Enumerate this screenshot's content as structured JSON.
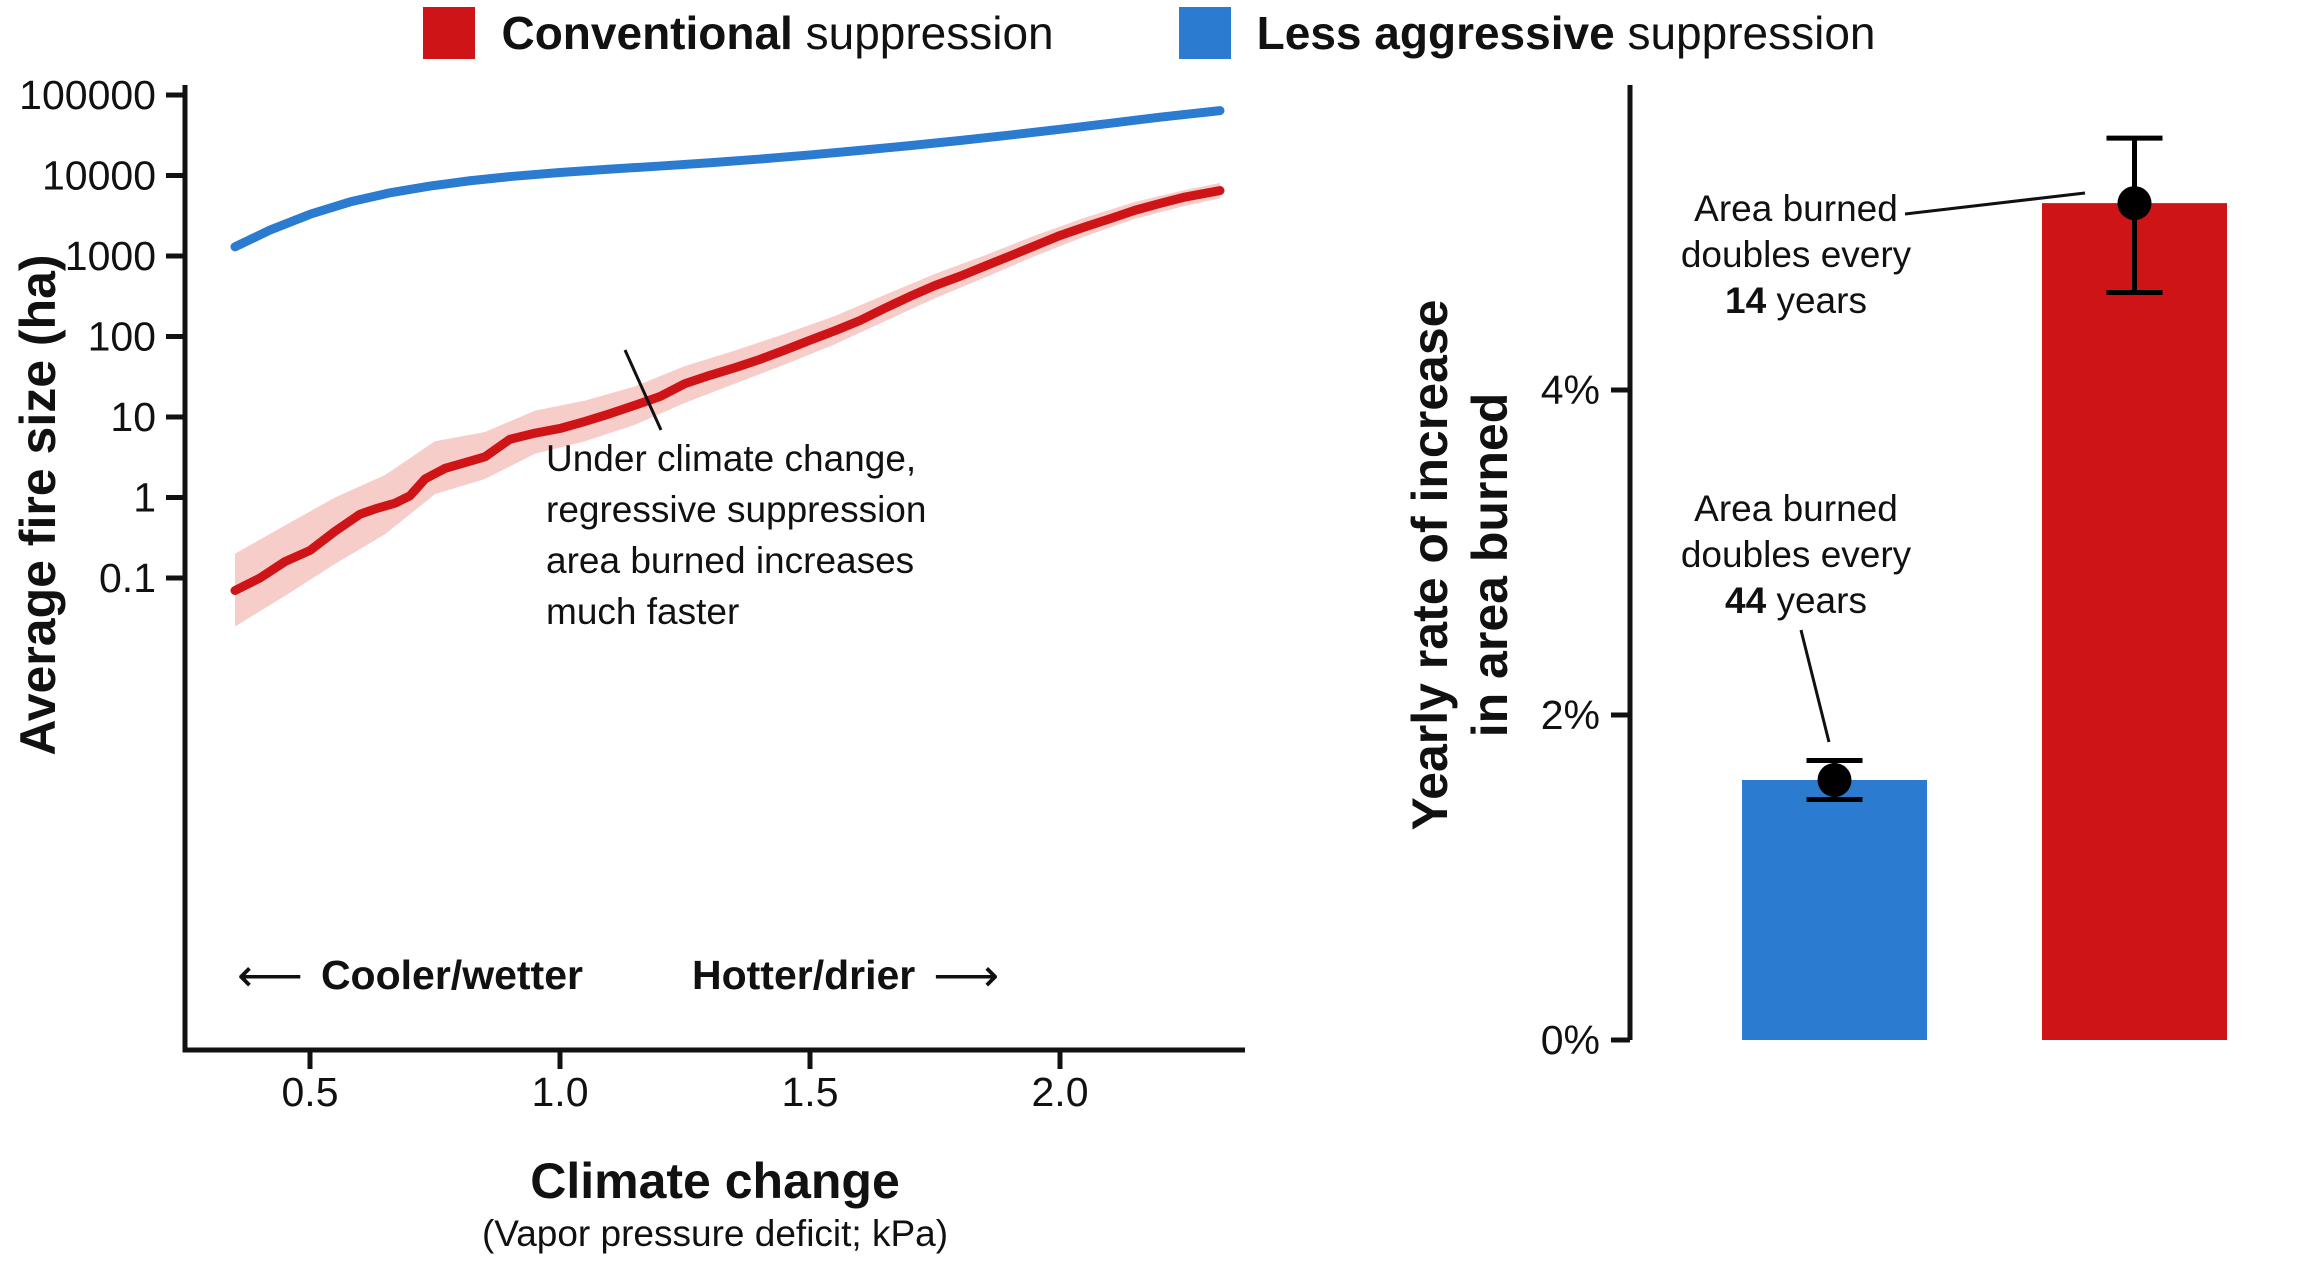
{
  "legend": {
    "items": [
      {
        "id": "conventional",
        "color": "#cf1418",
        "bold": "Conventional",
        "rest": " suppression"
      },
      {
        "id": "less-aggressive",
        "color": "#2b7bd0",
        "bold": "Less aggressive",
        "rest": " suppression"
      }
    ]
  },
  "chart_data": [
    {
      "type": "line",
      "ylabel": "Average fire size (ha)",
      "xlabel": "Climate change",
      "xlabel_sub": "(Vapor pressure deficit; kPa)",
      "y_scale": "log",
      "xlim": [
        0.25,
        2.37
      ],
      "ylim": [
        0.03,
        100000
      ],
      "x_tick_values": [
        0.5,
        1.0,
        1.5,
        2.0
      ],
      "x_tick_labels": [
        "0.5",
        "1.0",
        "1.5",
        "2.0"
      ],
      "y_tick_values": [
        100000,
        10000,
        1000,
        100,
        10,
        1,
        0.1
      ],
      "y_tick_labels": [
        "100000",
        "10000",
        "1000",
        "100",
        "10",
        "1",
        "0.1"
      ],
      "direction_left": {
        "arrow": "⟵",
        "label": "Cooler/wetter"
      },
      "direction_right": {
        "label": "Hotter/drier",
        "arrow": "⟶"
      },
      "annotation": "Under climate change,\nregressive suppression\narea burned increases\nmuch faster",
      "series": [
        {
          "id": "less-aggressive",
          "name": "Less aggressive suppression",
          "color": "#2b7bd0",
          "x": [
            0.35,
            0.42,
            0.5,
            0.58,
            0.66,
            0.74,
            0.82,
            0.9,
            1.0,
            1.1,
            1.2,
            1.3,
            1.4,
            1.5,
            1.6,
            1.7,
            1.8,
            1.9,
            2.0,
            2.1,
            2.2,
            2.32
          ],
          "y": [
            1300,
            2100,
            3300,
            4700,
            6100,
            7400,
            8600,
            9700,
            10900,
            12000,
            13100,
            14400,
            16000,
            18000,
            20500,
            23500,
            27200,
            31800,
            37500,
            44500,
            53000,
            64000
          ]
        },
        {
          "id": "conventional",
          "name": "Conventional suppression",
          "color": "#cf1418",
          "x": [
            0.35,
            0.4,
            0.45,
            0.5,
            0.55,
            0.6,
            0.63,
            0.67,
            0.7,
            0.73,
            0.77,
            0.8,
            0.85,
            0.9,
            0.95,
            1.0,
            1.05,
            1.1,
            1.15,
            1.2,
            1.25,
            1.3,
            1.35,
            1.4,
            1.45,
            1.5,
            1.55,
            1.6,
            1.65,
            1.7,
            1.75,
            1.8,
            1.85,
            1.9,
            1.95,
            2.0,
            2.05,
            2.1,
            2.15,
            2.2,
            2.25,
            2.32
          ],
          "y": [
            0.07,
            0.1,
            0.16,
            0.22,
            0.38,
            0.62,
            0.72,
            0.85,
            1.05,
            1.7,
            2.3,
            2.6,
            3.2,
            5.3,
            6.3,
            7.2,
            8.8,
            11,
            14,
            18,
            26,
            33,
            41,
            52,
            68,
            90,
            118,
            158,
            225,
            315,
            430,
            560,
            750,
            1000,
            1340,
            1800,
            2300,
            2900,
            3700,
            4500,
            5400,
            6500
          ],
          "band": {
            "color": "#f7cdc9",
            "x": [
              0.35,
              0.45,
              0.55,
              0.65,
              0.75,
              0.85,
              0.95,
              1.05,
              1.15,
              1.25,
              1.35,
              1.45,
              1.55,
              1.65,
              1.75,
              1.85,
              1.95,
              2.05,
              2.15,
              2.25,
              2.32
            ],
            "lo": [
              0.025,
              0.06,
              0.15,
              0.35,
              1.1,
              1.7,
              3.5,
              5,
              8,
              15,
              26,
              45,
              80,
              155,
              300,
              540,
              1000,
              1750,
              2900,
              4200,
              5200
            ],
            "hi": [
              0.2,
              0.45,
              1.0,
              1.9,
              5.0,
              6.5,
              12,
              16,
              24,
              43,
              67,
              108,
              180,
              330,
              600,
              1020,
              1800,
              3000,
              4700,
              6600,
              8100
            ]
          }
        }
      ]
    },
    {
      "type": "bar",
      "ylabel_line1": "Yearly rate of increase",
      "ylabel_line2": "in area burned",
      "ids": [
        "less-aggressive",
        "conventional"
      ],
      "categories": [
        "Less aggressive suppression",
        "Conventional suppression"
      ],
      "values_pct": [
        1.6,
        5.15
      ],
      "error_low_pct": [
        1.48,
        4.6
      ],
      "error_high_pct": [
        1.72,
        5.55
      ],
      "doubling_years": [
        44,
        14
      ],
      "colors": [
        "#2b7bd0",
        "#cf1418"
      ],
      "y_tick_values": [
        0,
        2,
        4
      ],
      "y_tick_labels": [
        "0%",
        "2%",
        "4%"
      ],
      "annotations": [
        {
          "target": "conventional",
          "line1": "Area burned",
          "line2": "doubles every",
          "bold": "14",
          "rest": " years"
        },
        {
          "target": "less-aggressive",
          "line1": "Area burned",
          "line2": "doubles every",
          "bold": "44",
          "rest": " years"
        }
      ]
    }
  ]
}
